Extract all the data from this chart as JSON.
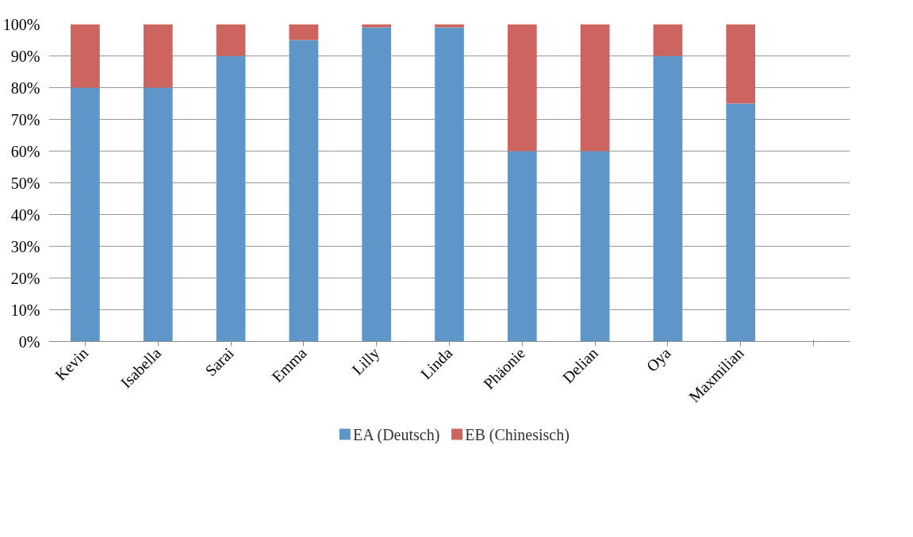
{
  "chart_data": {
    "type": "bar",
    "stacked": true,
    "categories": [
      "Kevin",
      "Isabella",
      "Sarai",
      "Emma",
      "Lilly",
      "Linda",
      "Phäonie",
      "Delian",
      "Oya",
      "Maxmilian",
      null
    ],
    "series": [
      {
        "name": "EA (Deutsch)",
        "color": "#5f96c9",
        "values": [
          80,
          80,
          90,
          95,
          99,
          99,
          60,
          60,
          90,
          75,
          null
        ]
      },
      {
        "name": "EB (Chinesisch)",
        "color": "#cc6560",
        "values": [
          20,
          20,
          10,
          5,
          1,
          1,
          40,
          40,
          10,
          25,
          null
        ]
      }
    ],
    "ylim": [
      0,
      100
    ],
    "yticks": [
      {
        "value": 0,
        "label": "0%"
      },
      {
        "value": 10,
        "label": "10%"
      },
      {
        "value": 20,
        "label": "20%"
      },
      {
        "value": 30,
        "label": "30%"
      },
      {
        "value": 40,
        "label": "40%"
      },
      {
        "value": 50,
        "label": "50%"
      },
      {
        "value": 60,
        "label": "60%"
      },
      {
        "value": 70,
        "label": "70%"
      },
      {
        "value": 80,
        "label": "80%"
      },
      {
        "value": 90,
        "label": "90%"
      },
      {
        "value": 100,
        "label": "100%"
      }
    ],
    "grid": "y",
    "legend": "bottom"
  }
}
